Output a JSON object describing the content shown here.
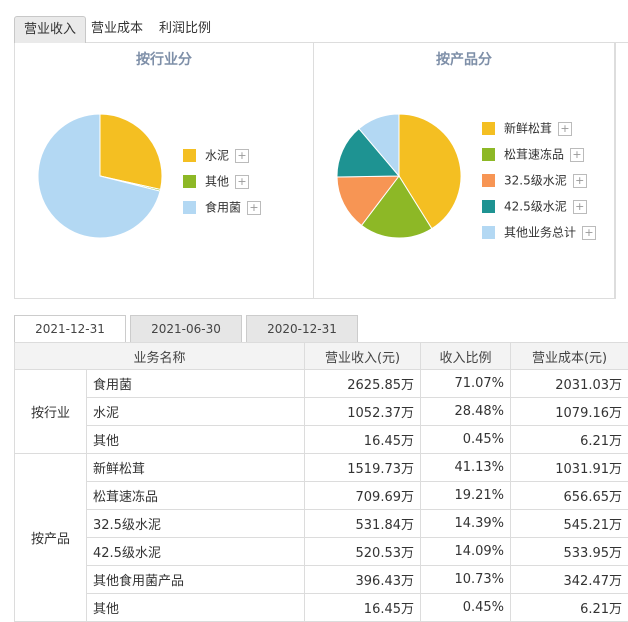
{
  "top_tabs": [
    {
      "label": "营业收入",
      "active": true
    },
    {
      "label": "营业成本",
      "active": false
    },
    {
      "label": "利润比例",
      "active": false
    }
  ],
  "charts": {
    "left": {
      "title": "按行业分",
      "legend": [
        {
          "label": "水泥",
          "color": "#f4bf22"
        },
        {
          "label": "其他",
          "color": "#8db826"
        },
        {
          "label": "食用菌",
          "color": "#b3d8f3"
        }
      ]
    },
    "right": {
      "title": "按产品分",
      "legend": [
        {
          "label": "新鲜松茸",
          "color": "#f4bf22"
        },
        {
          "label": "松茸速冻品",
          "color": "#8db826"
        },
        {
          "label": "32.5级水泥",
          "color": "#f79554"
        },
        {
          "label": "42.5级水泥",
          "color": "#1e9392"
        },
        {
          "label": "其他业务总计",
          "color": "#b3d8f3"
        }
      ]
    }
  },
  "chart_data": [
    {
      "type": "pie",
      "title": "按行业分",
      "categories": [
        "水泥",
        "其他",
        "食用菌"
      ],
      "values": [
        28.48,
        0.45,
        71.07
      ],
      "colors": [
        "#f4bf22",
        "#8db826",
        "#b3d8f3"
      ]
    },
    {
      "type": "pie",
      "title": "按产品分",
      "categories": [
        "新鲜松茸",
        "松茸速冻品",
        "32.5级水泥",
        "42.5级水泥",
        "其他业务总计"
      ],
      "values": [
        41.13,
        19.21,
        14.39,
        14.09,
        11.18
      ],
      "colors": [
        "#f4bf22",
        "#8db826",
        "#f79554",
        "#1e9392",
        "#b3d8f3"
      ]
    }
  ],
  "date_tabs": [
    {
      "label": "2021-12-31",
      "active": true
    },
    {
      "label": "2021-06-30",
      "active": false
    },
    {
      "label": "2020-12-31",
      "active": false
    }
  ],
  "table": {
    "headers": [
      "业务名称",
      "营业收入(元)",
      "收入比例",
      "营业成本(元)"
    ],
    "groups": [
      {
        "label": "按行业",
        "rows": [
          {
            "name": "食用菌",
            "revenue": "2625.85万",
            "ratio": "71.07%",
            "cost": "2031.03万"
          },
          {
            "name": "水泥",
            "revenue": "1052.37万",
            "ratio": "28.48%",
            "cost": "1079.16万"
          },
          {
            "name": "其他",
            "revenue": "16.45万",
            "ratio": "0.45%",
            "cost": "6.21万"
          }
        ]
      },
      {
        "label": "按产品",
        "rows": [
          {
            "name": "新鲜松茸",
            "revenue": "1519.73万",
            "ratio": "41.13%",
            "cost": "1031.91万"
          },
          {
            "name": "松茸速冻品",
            "revenue": "709.69万",
            "ratio": "19.21%",
            "cost": "656.65万"
          },
          {
            "name": "32.5级水泥",
            "revenue": "531.84万",
            "ratio": "14.39%",
            "cost": "545.21万"
          },
          {
            "name": "42.5级水泥",
            "revenue": "520.53万",
            "ratio": "14.09%",
            "cost": "533.95万"
          },
          {
            "name": "其他食用菌产品",
            "revenue": "396.43万",
            "ratio": "10.73%",
            "cost": "342.47万"
          },
          {
            "name": "其他",
            "revenue": "16.45万",
            "ratio": "0.45%",
            "cost": "6.21万"
          }
        ]
      }
    ]
  }
}
